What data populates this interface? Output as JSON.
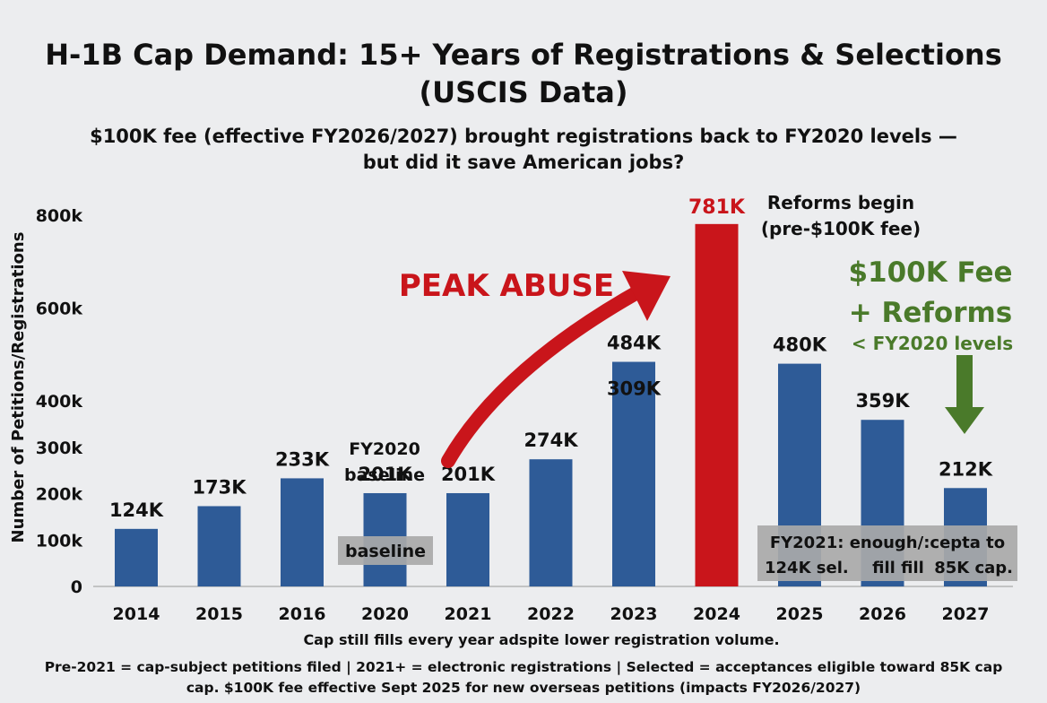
{
  "header": {
    "title_line1": "H-1B Cap Demand: 15+ Years of Registrations & Selections",
    "title_line2": "(USCIS Data)",
    "subtitle_line1": "$100K fee (effective FY2026/2027) brought registrations back to FY2020 levels —",
    "subtitle_line2": "but did it save American jobs?"
  },
  "footnote": {
    "line1": "Pre-2021 = cap-subject petitions filed | 2021+ = electronic registrations | Selected = acceptances eligible toward 85K cap",
    "line2": "cap. $100K fee effective Sept 2025 for new overseas petitions (impacts FY2026/2027)"
  },
  "chart_data": {
    "type": "bar",
    "title": "H-1B Cap Demand: 15+ Years of Registrations & Selections (USCIS Data)",
    "ylabel": "Number of Petitions/Registrations",
    "xlabel": "Cap still fills every year adspite lower registration volume.",
    "ylim": [
      0,
      800000
    ],
    "yticks": [
      0,
      100000,
      200000,
      300000,
      400000,
      600000,
      800000
    ],
    "ytick_labels": [
      "0",
      "100k",
      "200k",
      "300k",
      "400k",
      "600k",
      "800k"
    ],
    "grid": false,
    "categories": [
      "2014",
      "2015",
      "2016",
      "2020",
      "2021",
      "2022",
      "2023",
      "2024",
      "2025",
      "2026",
      "2027"
    ],
    "values": [
      124000,
      173000,
      233000,
      201000,
      201000,
      274000,
      484000,
      781000,
      480000,
      359000,
      212000
    ],
    "data_labels": [
      "124K",
      "173K",
      "233K",
      "201K",
      "201K",
      "274K",
      "484K",
      "781K",
      "480K",
      "359K",
      "212K"
    ],
    "highlight_index": 7,
    "secondary_labels": [
      {
        "category": "2023",
        "text": "309K"
      }
    ],
    "colors": {
      "bar": "#2e5b97",
      "highlight": "#c9151b",
      "highlight_text": "#c9151b",
      "green": "#4a7a2a",
      "callout_bg": "#a9a9a9"
    },
    "annotations": {
      "peak": "PEAK ABUSE",
      "fy2020_line1": "FY2020",
      "fy2020_line2": "baseline",
      "baseline_box": "baseline",
      "reforms_line1": "Reforms begin",
      "reforms_line2": "(pre-$100K fee)",
      "fee_line1": "$100K Fee",
      "fee_line2": "+ Reforms",
      "fee_line3": "< FY2020 levels",
      "callout_line1": "FY2021: enough/:cepta to",
      "callout_line2_a": "124K sel.",
      "callout_line2_b": "fill fill",
      "callout_line2_c": "85K cap."
    }
  }
}
